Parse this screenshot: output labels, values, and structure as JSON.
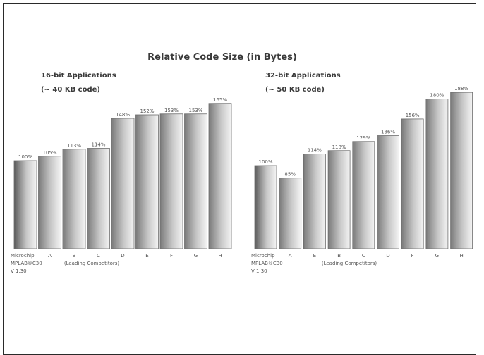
{
  "title": "Relative Code Size (in Bytes)",
  "bar_colors": {
    "edge": "#6e6e6e",
    "light": "#f4f4f4",
    "mid": "#c8c8c8",
    "dark": "#7a7a7a",
    "first_dark": "#5a5a5a"
  },
  "chart_data": [
    {
      "type": "bar",
      "title_lines": [
        "16-bit Applications",
        "(~ 40 KB code)"
      ],
      "categories": [
        "Microchip",
        "A",
        "B",
        "C",
        "D",
        "E",
        "F",
        "G",
        "H"
      ],
      "category_sub": [
        "MPLAB®C30",
        "V 1.30"
      ],
      "group_note": "(Leading Competitors)",
      "values": [
        100,
        105,
        113,
        114,
        148,
        152,
        153,
        153,
        165
      ],
      "value_labels": [
        "100%",
        "105%",
        "113%",
        "114%",
        "148%",
        "152%",
        "153%",
        "153%",
        "165%"
      ],
      "ylim": [
        0,
        195
      ]
    },
    {
      "type": "bar",
      "title_lines": [
        "32-bit Applications",
        "(~ 50 KB code)"
      ],
      "categories": [
        "Microchip",
        "A",
        "E",
        "B",
        "C",
        "D",
        "F",
        "G",
        "H"
      ],
      "category_sub": [
        "MPLAB®C30",
        "V 1.30"
      ],
      "group_note": "(Leading Competitors)",
      "values": [
        100,
        85,
        114,
        118,
        129,
        136,
        156,
        180,
        188
      ],
      "value_labels": [
        "100%",
        "85%",
        "114%",
        "118%",
        "129%",
        "136%",
        "156%",
        "180%",
        "188%"
      ],
      "ylim": [
        0,
        195
      ]
    }
  ]
}
